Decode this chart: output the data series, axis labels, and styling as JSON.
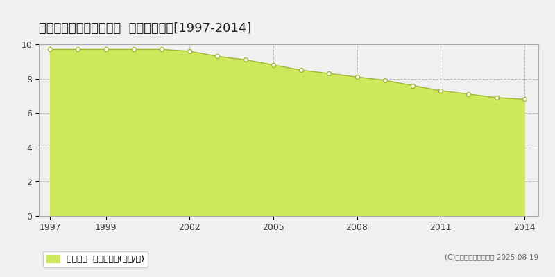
{
  "title": "西村山郡河北町谷地所岡  基準地価推移[1997-2014]",
  "years": [
    1997,
    1998,
    1999,
    2000,
    2001,
    2002,
    2003,
    2004,
    2005,
    2006,
    2007,
    2008,
    2009,
    2010,
    2011,
    2012,
    2013,
    2014
  ],
  "values": [
    9.7,
    9.7,
    9.7,
    9.7,
    9.7,
    9.6,
    9.3,
    9.1,
    8.8,
    8.5,
    8.3,
    8.1,
    7.9,
    7.6,
    7.3,
    7.1,
    6.9,
    6.8
  ],
  "fill_color": "#cde85a",
  "line_color": "#a0b830",
  "marker_facecolor": "#ffffff",
  "marker_edgecolor": "#a0b830",
  "grid_color": "#bbbbbb",
  "background_color": "#f0f0f0",
  "plot_bg_color": "#f0f0f0",
  "ylim": [
    0,
    10
  ],
  "yticks": [
    0,
    2,
    4,
    6,
    8,
    10
  ],
  "xticks": [
    1997,
    1999,
    2002,
    2005,
    2008,
    2011,
    2014
  ],
  "legend_label": "基準地価  平均坪単価(万円/坪)",
  "legend_color": "#cde85a",
  "copyright_text": "(C)土地価格ドットコム 2025-08-19",
  "title_fontsize": 13,
  "axis_fontsize": 9,
  "legend_fontsize": 9
}
